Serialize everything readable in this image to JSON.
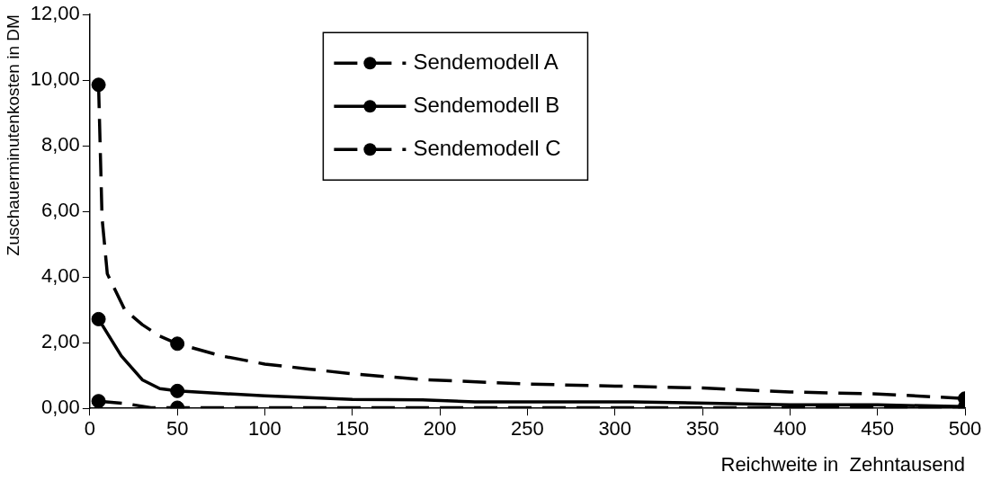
{
  "chart_data": {
    "type": "line",
    "xlabel": "Reichweite in  Zehntausend",
    "ylabel": "Zuschauerminutenkosten in DM",
    "xlim": [
      0,
      500
    ],
    "xticks": [
      0,
      50,
      100,
      150,
      200,
      250,
      300,
      350,
      400,
      450,
      500
    ],
    "ylim": [
      0,
      12
    ],
    "yticks": [
      {
        "value": 0,
        "label": "0,00"
      },
      {
        "value": 2,
        "label": "2,00"
      },
      {
        "value": 4,
        "label": "4,00"
      },
      {
        "value": 6,
        "label": "6,00"
      },
      {
        "value": 8,
        "label": "8,00"
      },
      {
        "value": 10,
        "label": "10,00"
      },
      {
        "value": 12,
        "label": "12,00"
      }
    ],
    "grid": false,
    "legend": "top",
    "marker": "circle",
    "series": [
      {
        "name": "Sendemodell A",
        "color": "#000000",
        "line_style": "dashed",
        "marker": "none",
        "x": [
          5,
          7,
          10,
          20,
          30,
          40,
          50,
          75,
          100,
          125,
          150,
          190,
          250,
          300,
          350,
          400,
          450,
          500
        ],
        "values": [
          9.86,
          5.8,
          4.1,
          3.0,
          2.55,
          2.2,
          1.97,
          1.6,
          1.35,
          1.2,
          1.05,
          0.88,
          0.74,
          0.68,
          0.62,
          0.5,
          0.44,
          0.3
        ]
      },
      {
        "name": "Sendemodell B",
        "color": "#000000",
        "line_style": "solid",
        "marker": "none",
        "x": [
          5,
          18,
          30,
          40,
          50,
          100,
          150,
          190,
          220,
          310,
          400,
          450,
          500
        ],
        "values": [
          2.72,
          1.6,
          0.87,
          0.6,
          0.53,
          0.38,
          0.27,
          0.26,
          0.2,
          0.2,
          0.11,
          0.11,
          0.05
        ]
      },
      {
        "name": "Sendemodell C",
        "color": "#000000",
        "line_style": "dashed",
        "marker": "none",
        "x": [
          5,
          20,
          35,
          50,
          500
        ],
        "values": [
          0.22,
          0.15,
          0.02,
          0.02,
          0.02
        ]
      },
      {
        "color": "#000000",
        "type": "scatter",
        "x": [
          5,
          50,
          500
        ],
        "values": [
          9.86,
          1.97,
          0.3
        ]
      },
      {
        "color": "#000000",
        "type": "scatter",
        "x": [
          5,
          50,
          500
        ],
        "values": [
          2.72,
          0.53,
          0.05
        ]
      },
      {
        "color": "#000000",
        "type": "scatter",
        "x": [
          5,
          50
        ],
        "values": [
          0.22,
          0.02
        ]
      }
    ]
  }
}
